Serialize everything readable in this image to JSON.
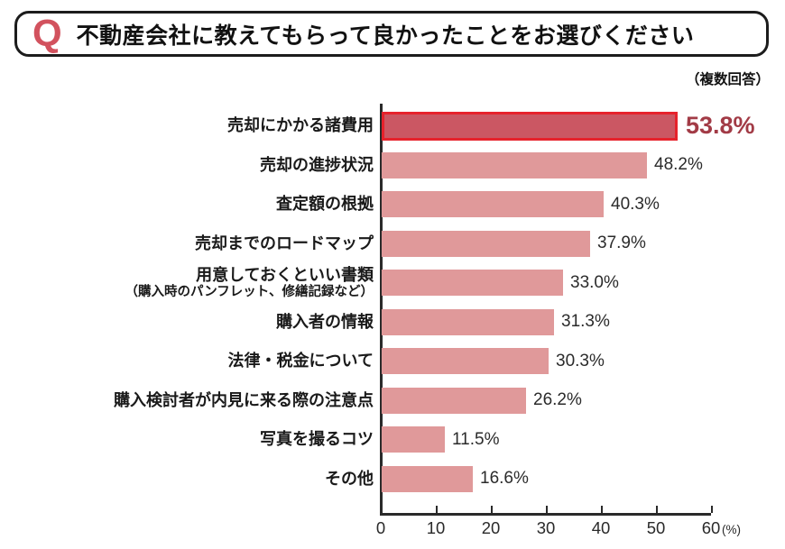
{
  "header": {
    "q_mark": "Q",
    "title": "不動産会社に教えてもらって良かったことをお選びください",
    "note": "（複数回答）"
  },
  "chart_data": {
    "type": "bar",
    "orientation": "horizontal",
    "title": "不動産会社に教えてもらって良かったことをお選びください",
    "categories": [
      "売却にかかる諸費用",
      "売却の進捗状況",
      "査定額の根拠",
      "売却までのロードマップ",
      "用意しておくといい書類",
      "購入者の情報",
      "法律・税金について",
      "購入検討者が内見に来る際の注意点",
      "写真を撮るコツ",
      "その他"
    ],
    "sublabels": [
      "",
      "",
      "",
      "",
      "（購入時のパンフレット、修繕記録など）",
      "",
      "",
      "",
      "",
      ""
    ],
    "values": [
      53.8,
      48.2,
      40.3,
      37.9,
      33.0,
      31.3,
      30.3,
      26.2,
      11.5,
      16.6
    ],
    "value_labels": [
      "53.8%",
      "48.2%",
      "40.3%",
      "37.9%",
      "33.0%",
      "31.3%",
      "30.3%",
      "26.2%",
      "11.5%",
      "16.6%"
    ],
    "highlight_index": 0,
    "xlim": [
      0,
      60
    ],
    "x_ticks": [
      "0",
      "10",
      "20",
      "30",
      "40",
      "50",
      "60"
    ],
    "x_unit": "(%)",
    "legend": "none",
    "grid": "off",
    "colors": {
      "bar": "#e0999a",
      "highlight_fill": "#cb5763",
      "highlight_border": "#e6222c",
      "highlight_text": "#a23b46",
      "q_mark": "#d2525e"
    }
  }
}
